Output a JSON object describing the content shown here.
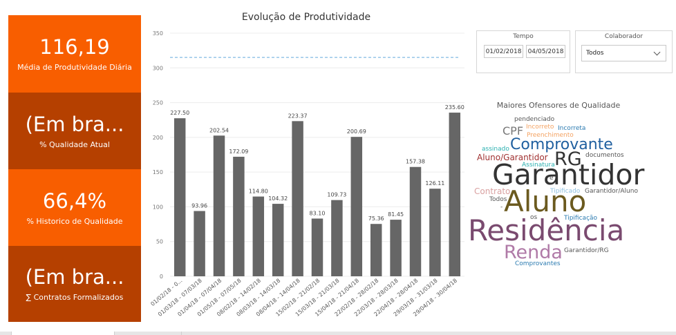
{
  "kpis": [
    {
      "value": "116,19",
      "label": "Média de Produtividade Diária",
      "color": "#f85e00"
    },
    {
      "value": "(Em bra...",
      "label": "% Qualidade Atual",
      "color": "#b54000"
    },
    {
      "value": "66,4%",
      "label": "% Historico de Qualidade",
      "color": "#f85e00"
    },
    {
      "value": "(Em bra...",
      "label": "∑ Contratos Formalizados",
      "color": "#b54000"
    }
  ],
  "chart_data": {
    "type": "bar",
    "title": "Evolução de Produtividade",
    "categories": [
      "01/02/18 - 0...",
      "01/03/18 - 07/03/18",
      "01/04/18 - 07/04/18",
      "01/05/18 - 07/05/18",
      "08/02/18 - 14/02/18",
      "08/03/18 - 14/03/18",
      "08/04/18 - 14/04/18",
      "15/02/18 - 21/02/18",
      "15/03/18 - 21/03/18",
      "15/04/18 - 21/04/18",
      "22/02/18 - 28/02/18",
      "22/03/18 - 28/03/18",
      "22/04/18 - 28/04/18",
      "29/03/18 - 31/03/18",
      "29/04/18 - 30/04/18"
    ],
    "values": [
      227.5,
      93.96,
      202.54,
      172.09,
      114.8,
      104.32,
      223.37,
      83.1,
      109.73,
      200.69,
      75.36,
      81.45,
      157.38,
      126.11,
      235.6
    ],
    "value_labels": [
      "227.50",
      "93.96",
      "202.54",
      "172.09",
      "114.80",
      "104.32",
      "223.37",
      "83.10",
      "109.73",
      "200.69",
      "75.36",
      "81.45",
      "157.38",
      "126.11",
      "235.60"
    ],
    "ylim": [
      0,
      350
    ],
    "yticks": [
      0,
      50,
      100,
      150,
      200,
      250,
      300,
      350
    ],
    "reference_line": 315,
    "bar_color": "#666666",
    "reference_color": "#9ec9e9",
    "grid": true
  },
  "slicers": {
    "tempo": {
      "title": "Tempo",
      "start": "01/02/2018",
      "end": "04/05/2018"
    },
    "colaborador": {
      "title": "Colaborador",
      "selected": "Todos"
    }
  },
  "wordcloud": {
    "title": "Maiores Ofensores de Qualidade",
    "words": [
      {
        "text": "pendenciado",
        "color": "#555555"
      },
      {
        "text": "CPF",
        "color": "#777777"
      },
      {
        "text": "Incorreto",
        "color": "#f4a261"
      },
      {
        "text": "Incorreta",
        "color": "#2a7ab0"
      },
      {
        "text": "Preenchimento",
        "color": "#f4a261"
      },
      {
        "text": "assinado",
        "color": "#2ab0b0"
      },
      {
        "text": "Comprovante",
        "color": "#1f5f9f"
      },
      {
        "text": "Aluno/Garantidor",
        "color": "#a03030"
      },
      {
        "text": "RG",
        "color": "#333333"
      },
      {
        "text": "documentos",
        "color": "#555555"
      },
      {
        "text": "Assinatura",
        "color": "#2ab0b0"
      },
      {
        "text": "Garantidor",
        "color": "#333333"
      },
      {
        "text": "e",
        "color": "#555555"
      },
      {
        "text": "Contrato",
        "color": "#d9a0a0"
      },
      {
        "text": "Tipificado",
        "color": "#8ec0e0"
      },
      {
        "text": "Garantidor/Aluno",
        "color": "#555555"
      },
      {
        "text": "Todos",
        "color": "#555555"
      },
      {
        "text": "-",
        "color": "#555555"
      },
      {
        "text": "Aluno",
        "color": "#6b5a1f"
      },
      {
        "text": "os",
        "color": "#555555"
      },
      {
        "text": "Tipificação",
        "color": "#2a7ab0"
      },
      {
        "text": "Residência",
        "color": "#7a4a6f"
      },
      {
        "text": "Renda",
        "color": "#b07aa7"
      },
      {
        "text": "Garantidor/RG",
        "color": "#555555"
      },
      {
        "text": "Comprovantes",
        "color": "#2a7ab0"
      }
    ]
  }
}
